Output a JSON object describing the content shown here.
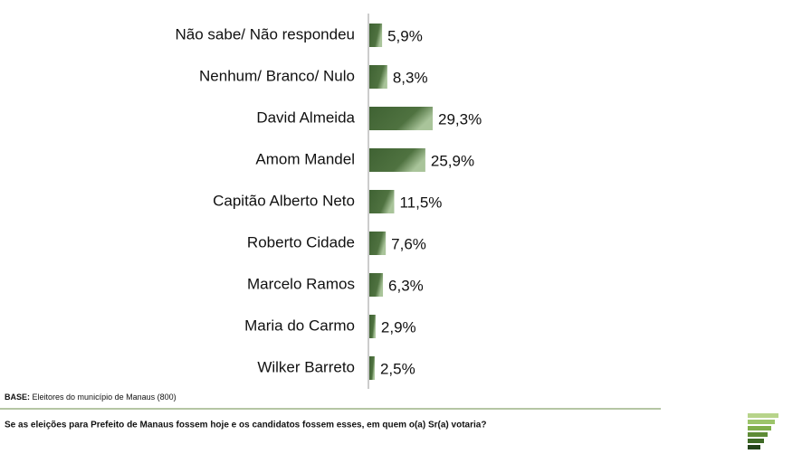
{
  "chart_data": {
    "type": "bar",
    "orientation": "horizontal",
    "categories": [
      "Não sabe/ Não respondeu",
      "Nenhum/ Branco/ Nulo",
      "David Almeida",
      "Amom Mandel",
      "Capitão Alberto Neto",
      "Roberto Cidade",
      "Marcelo Ramos",
      "Maria do Carmo",
      "Wilker Barreto"
    ],
    "values": [
      5.9,
      8.3,
      29.3,
      25.9,
      11.5,
      7.6,
      6.3,
      2.9,
      2.5
    ],
    "value_labels": [
      "5,9%",
      "8,3%",
      "29,3%",
      "25,9%",
      "11,5%",
      "7,6%",
      "6,3%",
      "2,9%",
      "2,5%"
    ],
    "color": "#3f6233",
    "base_label": "BASE:",
    "base_text": "Eleitores do município de Manaus (800)",
    "question": "Se as eleições para Prefeito de Manaus fossem hoje e os candidatos fossem esses, em quem o(a) Sr(a) votaria?"
  }
}
